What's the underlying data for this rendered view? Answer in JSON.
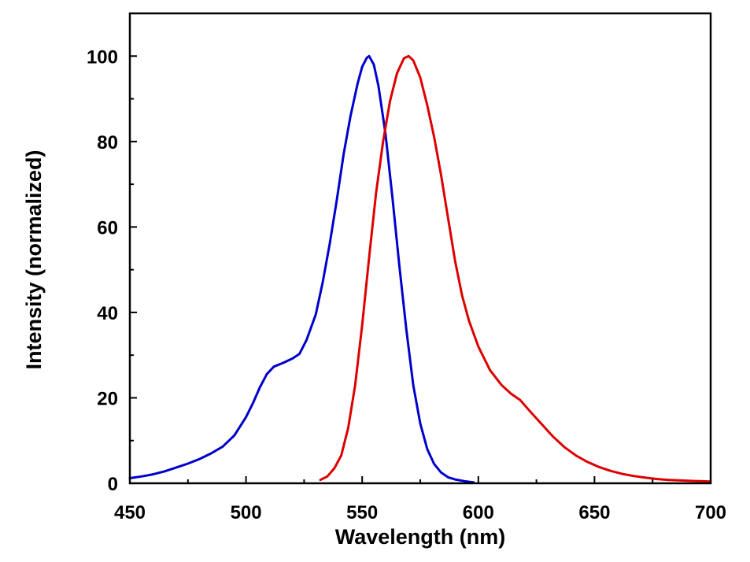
{
  "chart_data": {
    "type": "line",
    "title": "",
    "xlabel": "Wavelength (nm)",
    "ylabel": "Intensity (normalized)",
    "xlim": [
      450,
      700
    ],
    "ylim": [
      0,
      110
    ],
    "x_ticks": [
      450,
      500,
      550,
      600,
      650,
      700
    ],
    "y_ticks": [
      0,
      20,
      40,
      60,
      80,
      100
    ],
    "x_minor_ticks": [
      475,
      525,
      575,
      625,
      675
    ],
    "y_minor_ticks": [
      10,
      30,
      50,
      70,
      90,
      110
    ],
    "grid": false,
    "legend": "none",
    "series": [
      {
        "color": "#0000cc",
        "points": [
          [
            450,
            1.2
          ],
          [
            455,
            1.6
          ],
          [
            460,
            2.1
          ],
          [
            465,
            2.8
          ],
          [
            470,
            3.7
          ],
          [
            475,
            4.6
          ],
          [
            480,
            5.7
          ],
          [
            485,
            7.0
          ],
          [
            490,
            8.6
          ],
          [
            495,
            11.2
          ],
          [
            500,
            15.5
          ],
          [
            503,
            18.8
          ],
          [
            506,
            22.5
          ],
          [
            509,
            25.6
          ],
          [
            512,
            27.3
          ],
          [
            516,
            28.2
          ],
          [
            520,
            29.2
          ],
          [
            523,
            30.3
          ],
          [
            526,
            33.5
          ],
          [
            530,
            39.5
          ],
          [
            533,
            47.0
          ],
          [
            536,
            56.0
          ],
          [
            539,
            66.0
          ],
          [
            542,
            77.0
          ],
          [
            545,
            86.0
          ],
          [
            548,
            93.5
          ],
          [
            550,
            97.5
          ],
          [
            552,
            99.6
          ],
          [
            553,
            100.0
          ],
          [
            555,
            98.0
          ],
          [
            557,
            93.0
          ],
          [
            560,
            82.0
          ],
          [
            563,
            67.0
          ],
          [
            566,
            51.0
          ],
          [
            569,
            36.0
          ],
          [
            572,
            23.0
          ],
          [
            575,
            14.0
          ],
          [
            578,
            8.0
          ],
          [
            581,
            4.5
          ],
          [
            584,
            2.5
          ],
          [
            587,
            1.4
          ],
          [
            590,
            0.9
          ],
          [
            594,
            0.5
          ],
          [
            598,
            0.2
          ]
        ]
      },
      {
        "color": "#dd0000",
        "points": [
          [
            532,
            0.8
          ],
          [
            535,
            1.6
          ],
          [
            538,
            3.5
          ],
          [
            541,
            6.5
          ],
          [
            544,
            13.0
          ],
          [
            547,
            23.0
          ],
          [
            550,
            37.0
          ],
          [
            553,
            53.0
          ],
          [
            556,
            68.0
          ],
          [
            559,
            80.0
          ],
          [
            562,
            89.5
          ],
          [
            565,
            96.0
          ],
          [
            568,
            99.5
          ],
          [
            570,
            100.0
          ],
          [
            572,
            99.0
          ],
          [
            575,
            95.0
          ],
          [
            578,
            88.5
          ],
          [
            581,
            81.0
          ],
          [
            584,
            72.0
          ],
          [
            587,
            62.0
          ],
          [
            590,
            52.0
          ],
          [
            593,
            44.0
          ],
          [
            596,
            38.0
          ],
          [
            600,
            32.0
          ],
          [
            605,
            26.5
          ],
          [
            610,
            23.0
          ],
          [
            614,
            21.0
          ],
          [
            618,
            19.5
          ],
          [
            622,
            17.0
          ],
          [
            627,
            14.0
          ],
          [
            632,
            11.0
          ],
          [
            637,
            8.5
          ],
          [
            642,
            6.5
          ],
          [
            647,
            5.0
          ],
          [
            652,
            3.8
          ],
          [
            657,
            2.9
          ],
          [
            662,
            2.2
          ],
          [
            667,
            1.7
          ],
          [
            672,
            1.3
          ],
          [
            677,
            1.0
          ],
          [
            682,
            0.8
          ],
          [
            690,
            0.6
          ],
          [
            700,
            0.4
          ]
        ]
      }
    ]
  }
}
